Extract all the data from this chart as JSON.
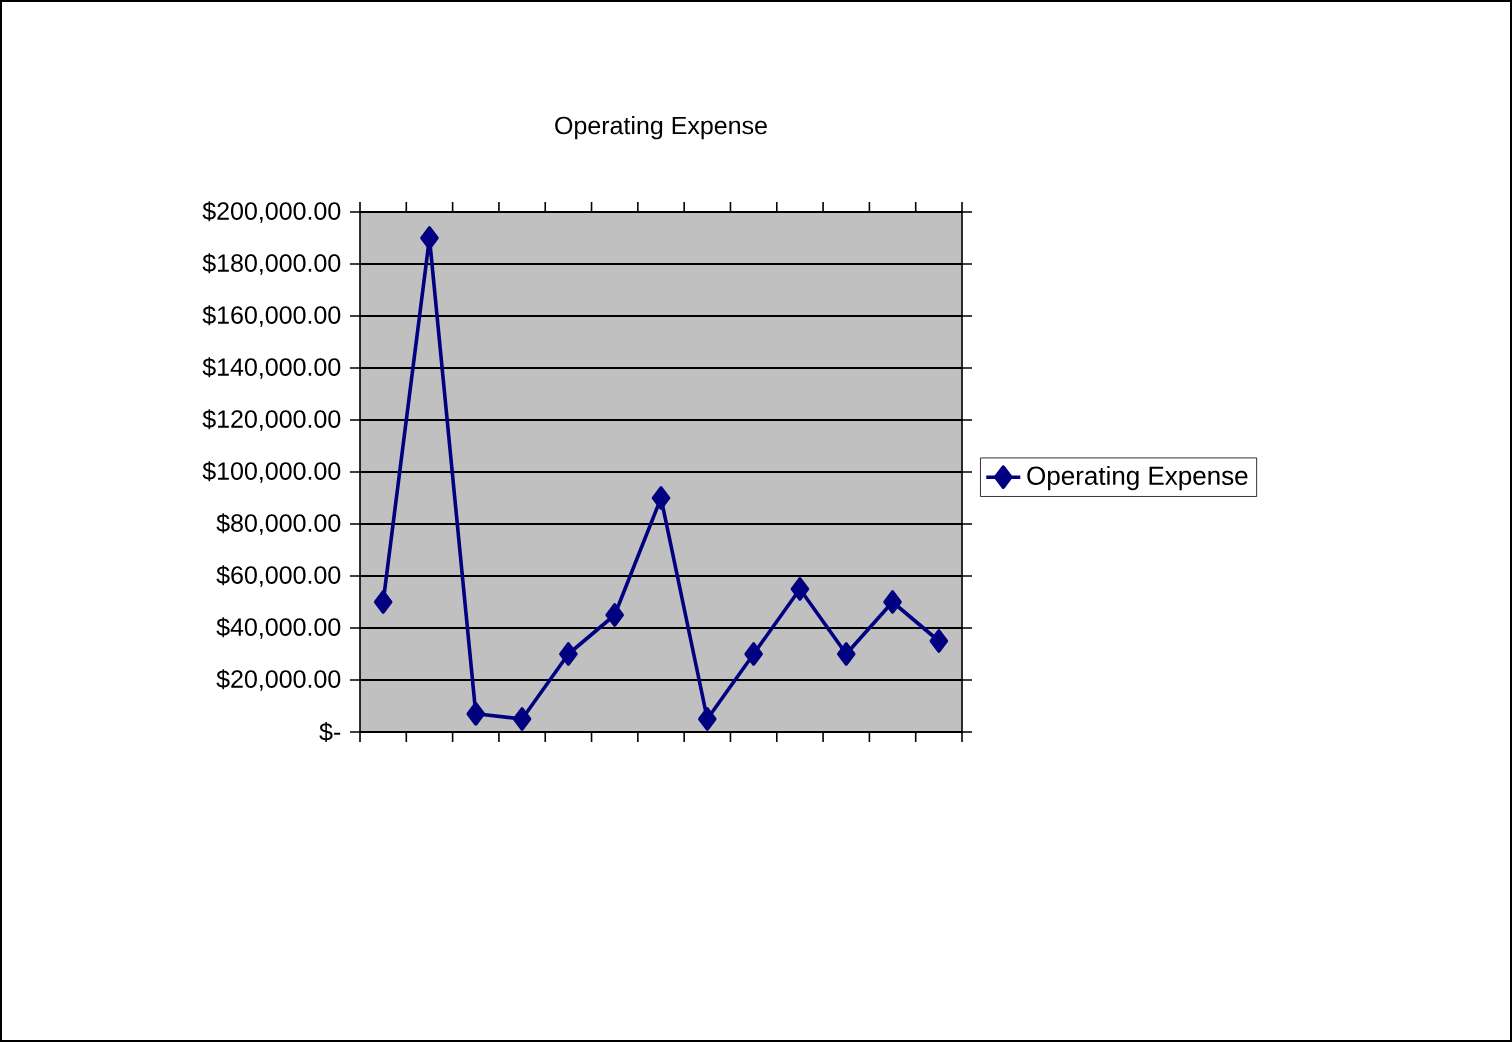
{
  "chart_data": {
    "type": "line",
    "title": "Operating Expense",
    "categories": [
      null,
      null,
      null,
      null,
      null,
      null,
      null,
      null,
      null,
      null,
      null,
      null,
      null
    ],
    "series": [
      {
        "name": "Operating Expense",
        "color": "#000080",
        "values": [
          50000,
          190000,
          7000,
          5000,
          30000,
          45000,
          90000,
          5000,
          30000,
          55000,
          30000,
          50000,
          35000
        ]
      }
    ],
    "ylim": [
      0,
      200000
    ],
    "yticks": [
      {
        "value": 0,
        "label": "$-"
      },
      {
        "value": 20000,
        "label": "$20,000.00"
      },
      {
        "value": 40000,
        "label": "$40,000.00"
      },
      {
        "value": 60000,
        "label": "$60,000.00"
      },
      {
        "value": 80000,
        "label": "$80,000.00"
      },
      {
        "value": 100000,
        "label": "$100,000.00"
      },
      {
        "value": 120000,
        "label": "$120,000.00"
      },
      {
        "value": 140000,
        "label": "$140,000.00"
      },
      {
        "value": 160000,
        "label": "$160,000.00"
      },
      {
        "value": 180000,
        "label": "$180,000.00"
      },
      {
        "value": 200000,
        "label": "$200,000.00"
      }
    ],
    "grid": "y",
    "legend": "right",
    "marker": "diamond",
    "line_style": "solid",
    "tick_labels": "y"
  }
}
